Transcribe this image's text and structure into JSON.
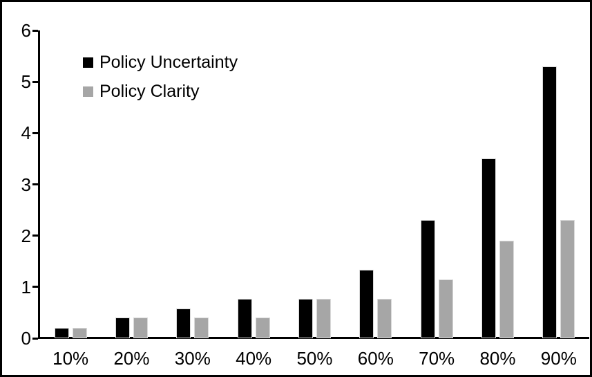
{
  "chart_data": {
    "type": "bar",
    "title": "",
    "xlabel": "",
    "ylabel": "",
    "categories": [
      "10%",
      "20%",
      "30%",
      "40%",
      "50%",
      "60%",
      "70%",
      "80%",
      "90%"
    ],
    "series": [
      {
        "name": "Policy Uncertainty",
        "color": "#000000",
        "values": [
          0.2,
          0.4,
          0.58,
          0.77,
          0.77,
          1.33,
          2.3,
          3.5,
          5.3
        ]
      },
      {
        "name": "Policy Clarity",
        "color": "#a6a6a6",
        "values": [
          0.2,
          0.4,
          0.4,
          0.4,
          0.77,
          0.77,
          1.15,
          1.9,
          2.3
        ]
      }
    ],
    "ylim": [
      0,
      6
    ],
    "ytick_step": 1,
    "ytick_labels": [
      "0",
      "1",
      "2",
      "3",
      "4",
      "5",
      "6"
    ],
    "grid": false,
    "legend_position": "top-left",
    "bar_outline_color": "#d9d9d9",
    "axis_color": "#000000",
    "frame_color": "#000000"
  }
}
